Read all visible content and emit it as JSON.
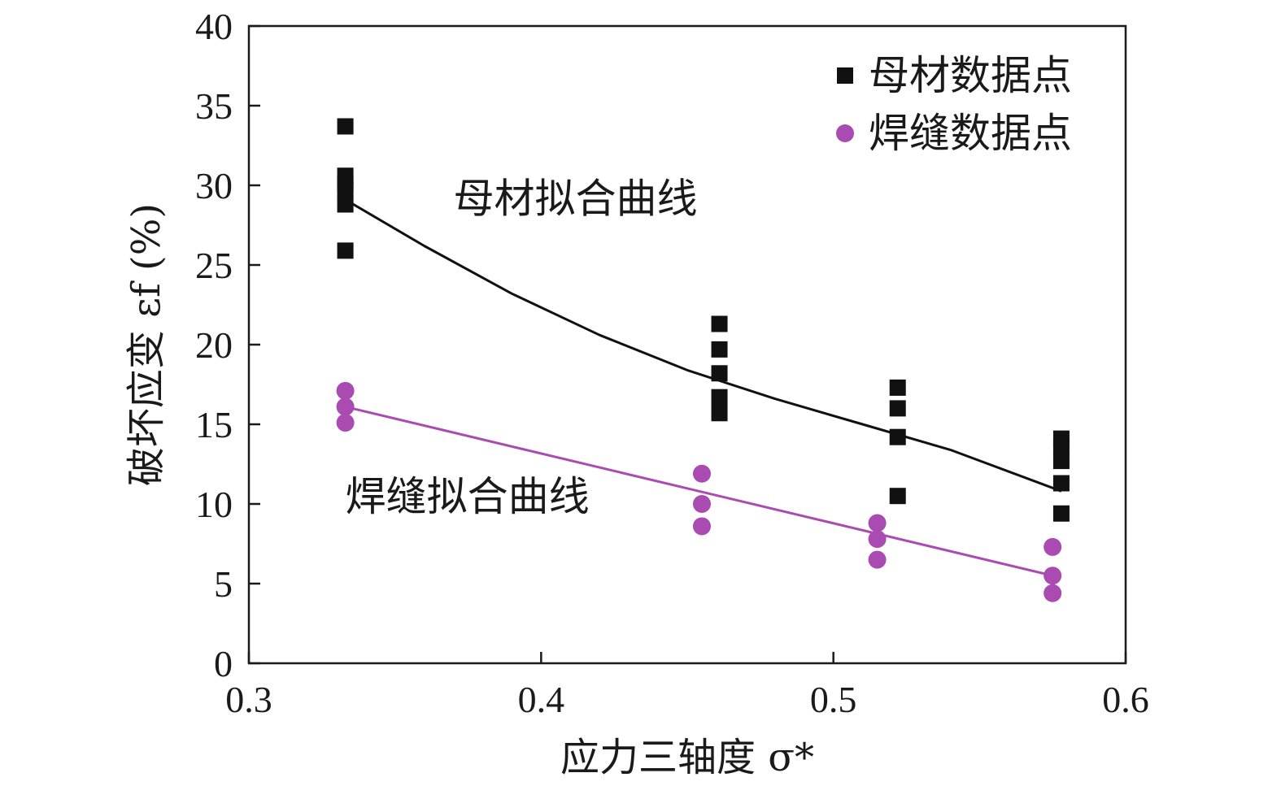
{
  "chart_data": {
    "type": "scatter",
    "xlabel": "应力三轴度 σ*",
    "ylabel": "破坏应变 εf (%)",
    "xlim": [
      0.3,
      0.6
    ],
    "ylim": [
      0,
      40
    ],
    "xticks": [
      0.3,
      0.4,
      0.5,
      0.6
    ],
    "xtick_labels": [
      "0.3",
      "0.4",
      "0.5",
      "0.6"
    ],
    "yticks": [
      0,
      5,
      10,
      15,
      20,
      25,
      30,
      35,
      40
    ],
    "ytick_labels": [
      "0",
      "5",
      "10",
      "15",
      "20",
      "25",
      "30",
      "35",
      "40"
    ],
    "legend_position": "top-right",
    "series": [
      {
        "name": "母材数据点",
        "marker": "square",
        "color": "#111111",
        "points": [
          {
            "x": 0.333,
            "y": 33.7
          },
          {
            "x": 0.333,
            "y": 30.6
          },
          {
            "x": 0.333,
            "y": 30.1
          },
          {
            "x": 0.333,
            "y": 29.7
          },
          {
            "x": 0.333,
            "y": 28.8
          },
          {
            "x": 0.333,
            "y": 25.9
          },
          {
            "x": 0.461,
            "y": 21.3
          },
          {
            "x": 0.461,
            "y": 19.7
          },
          {
            "x": 0.461,
            "y": 18.2
          },
          {
            "x": 0.461,
            "y": 16.7
          },
          {
            "x": 0.461,
            "y": 15.7
          },
          {
            "x": 0.522,
            "y": 17.3
          },
          {
            "x": 0.522,
            "y": 16.0
          },
          {
            "x": 0.522,
            "y": 14.2
          },
          {
            "x": 0.522,
            "y": 10.5
          },
          {
            "x": 0.578,
            "y": 14.1
          },
          {
            "x": 0.578,
            "y": 13.6
          },
          {
            "x": 0.578,
            "y": 12.7
          },
          {
            "x": 0.578,
            "y": 11.3
          },
          {
            "x": 0.578,
            "y": 9.4
          }
        ]
      },
      {
        "name": "焊缝数据点",
        "marker": "circle",
        "color": "#a94bb0",
        "points": [
          {
            "x": 0.333,
            "y": 17.1
          },
          {
            "x": 0.333,
            "y": 16.1
          },
          {
            "x": 0.333,
            "y": 15.1
          },
          {
            "x": 0.455,
            "y": 11.9
          },
          {
            "x": 0.455,
            "y": 10.0
          },
          {
            "x": 0.455,
            "y": 8.6
          },
          {
            "x": 0.515,
            "y": 8.8
          },
          {
            "x": 0.515,
            "y": 7.8
          },
          {
            "x": 0.515,
            "y": 6.5
          },
          {
            "x": 0.575,
            "y": 7.3
          },
          {
            "x": 0.575,
            "y": 5.5
          },
          {
            "x": 0.575,
            "y": 4.4
          }
        ]
      }
    ],
    "fit_curves": [
      {
        "name": "母材拟合曲线",
        "color": "#111111",
        "x": [
          0.333,
          0.36,
          0.39,
          0.42,
          0.45,
          0.48,
          0.51,
          0.54,
          0.578
        ],
        "y": [
          29.1,
          26.2,
          23.2,
          20.6,
          18.4,
          16.6,
          15.0,
          13.4,
          10.8
        ]
      },
      {
        "name": "焊缝拟合曲线",
        "color": "#a94bb0",
        "x": [
          0.333,
          0.575
        ],
        "y": [
          16.1,
          5.5
        ]
      }
    ],
    "annotations": [
      {
        "text": "母材拟合曲线",
        "anchor_x": 0.37,
        "anchor_y": 28.3
      },
      {
        "text": "焊缝拟合曲线",
        "anchor_x": 0.333,
        "anchor_y": 9.6
      }
    ]
  }
}
